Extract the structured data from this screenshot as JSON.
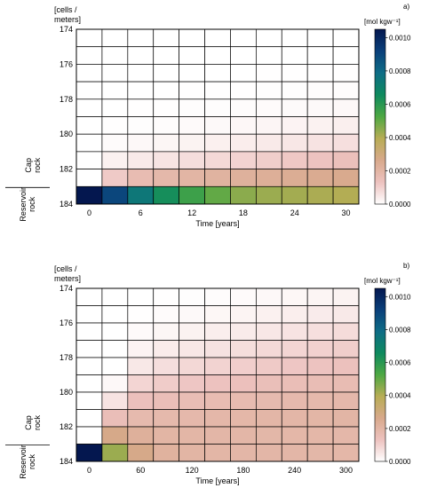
{
  "chart_data": [
    {
      "type": "heatmap",
      "panel_label": "a)",
      "units_label": "[mol kgw⁻¹]",
      "ylabel": "[cells / meters]",
      "ylabel_lines": [
        "[cells /",
        "meters]"
      ],
      "xlabel": "Time [years]",
      "x_tick_labels": [
        "0",
        "6",
        "12",
        "18",
        "24",
        "30"
      ],
      "y_tick_labels": [
        "174",
        "176",
        "178",
        "180",
        "182",
        "184"
      ],
      "x_range": [
        0,
        30
      ],
      "y_range": [
        174,
        184
      ],
      "colorbar_range": [
        0,
        0.00105
      ],
      "colorbar_tick_labels": [
        "0.0010",
        "0.0008",
        "0.0006",
        "0.0004",
        "0.0002",
        "0.0000"
      ],
      "colorbar_colors": [
        "#ffffff",
        "#edc2bf",
        "#d8a98c",
        "#b8ad55",
        "#4ea843",
        "#0e8a5e",
        "#0e6d86",
        "#0a3f7a",
        "#04174f"
      ],
      "zone_labels": {
        "cap": [
          "Cap",
          "rock"
        ],
        "reservoir": [
          "Reservoir",
          "rock"
        ]
      },
      "columns": 11,
      "rows": 10,
      "values": [
        [
          0.0,
          0.0,
          0.0,
          0.0,
          0.0,
          0.0,
          0.0,
          0.0,
          0.0,
          0.0,
          0.0
        ],
        [
          0.0,
          0.0,
          0.0,
          0.0,
          0.0,
          0.0,
          0.0,
          0.0,
          1e-06,
          1e-06,
          1e-06
        ],
        [
          0.0,
          0.0,
          0.0,
          0.0,
          1e-06,
          1e-06,
          1e-06,
          2e-06,
          2e-06,
          3e-06,
          3e-06
        ],
        [
          0.0,
          0.0,
          1e-06,
          1e-06,
          2e-06,
          2e-06,
          3e-06,
          4e-06,
          5e-06,
          6e-06,
          7e-06
        ],
        [
          0.0,
          1e-06,
          2e-06,
          3e-06,
          4e-06,
          5e-06,
          7e-06,
          9e-06,
          1.1e-05,
          1.3e-05,
          1.5e-05
        ],
        [
          0.0,
          3e-06,
          5e-06,
          7e-06,
          1e-05,
          1.3e-05,
          1.7e-05,
          2.1e-05,
          2.5e-05,
          2.9e-05,
          3.4e-05
        ],
        [
          0.0,
          9e-06,
          1.4e-05,
          2e-05,
          2.6e-05,
          3.2e-05,
          3.8e-05,
          4.5e-05,
          5.2e-05,
          6e-05,
          6.8e-05
        ],
        [
          0.0,
          3e-05,
          4.5e-05,
          5.8e-05,
          7e-05,
          8.2e-05,
          9.4e-05,
          0.000106,
          0.000118,
          0.00013,
          0.000142
        ],
        [
          0.0,
          0.000115,
          0.000165,
          0.000185,
          0.0002,
          0.000212,
          0.000222,
          0.000232,
          0.000242,
          0.00025,
          0.000258
        ],
        [
          0.00105,
          0.0009,
          0.00074,
          0.00064,
          0.00056,
          0.0005,
          0.00045,
          0.00043,
          0.00042,
          0.00041,
          0.0004
        ]
      ]
    },
    {
      "type": "heatmap",
      "panel_label": "b)",
      "units_label": "[mol kgw⁻¹]",
      "ylabel": "[cells / meters]",
      "ylabel_lines": [
        "[cells /",
        "meters]"
      ],
      "xlabel": "Time [years]",
      "x_tick_labels": [
        "0",
        "60",
        "120",
        "180",
        "240",
        "300"
      ],
      "y_tick_labels": [
        "174",
        "176",
        "178",
        "180",
        "182",
        "184"
      ],
      "x_range": [
        0,
        300
      ],
      "y_range": [
        174,
        184
      ],
      "colorbar_range": [
        0,
        0.00105
      ],
      "colorbar_tick_labels": [
        "0.0010",
        "0.0008",
        "0.0006",
        "0.0004",
        "0.0002",
        "0.0000"
      ],
      "colorbar_colors": [
        "#ffffff",
        "#edc2bf",
        "#d8a98c",
        "#b8ad55",
        "#4ea843",
        "#0e8a5e",
        "#0e6d86",
        "#0a3f7a",
        "#04174f"
      ],
      "zone_labels": {
        "cap": [
          "Cap",
          "rock"
        ],
        "reservoir": [
          "Reservoir",
          "rock"
        ]
      },
      "columns": 11,
      "rows": 10,
      "values": [
        [
          0.0,
          0.0,
          0.0,
          2e-06,
          4e-06,
          7e-06,
          1e-05,
          1.4e-05,
          1.8e-05,
          2.2e-05,
          2.6e-05
        ],
        [
          0.0,
          0.0,
          3e-06,
          8e-06,
          1.3e-05,
          1.8e-05,
          2.4e-05,
          3e-05,
          3.6e-05,
          4.2e-05,
          4.8e-05
        ],
        [
          0.0,
          0.0,
          1e-05,
          2e-05,
          2.8e-05,
          3.6e-05,
          4.4e-05,
          5.2e-05,
          6e-05,
          6.8e-05,
          7.5e-05
        ],
        [
          0.0,
          0.0,
          2.5e-05,
          4e-05,
          5.2e-05,
          6.2e-05,
          7.2e-05,
          8.2e-05,
          9e-05,
          9.8e-05,
          0.000106
        ],
        [
          0.0,
          0.0,
          5e-05,
          7e-05,
          8.4e-05,
          9.5e-05,
          0.000105,
          0.000114,
          0.000122,
          0.000129,
          0.000136
        ],
        [
          0.0,
          1.5e-05,
          9e-05,
          0.00011,
          0.000122,
          0.000132,
          0.00014,
          0.000147,
          0.000153,
          0.000158,
          0.000163
        ],
        [
          0.0,
          6e-05,
          0.00014,
          0.00015,
          0.000158,
          0.000164,
          0.000169,
          0.000173,
          0.000177,
          0.00018,
          0.000183
        ],
        [
          0.0,
          0.00015,
          0.000175,
          0.00018,
          0.000184,
          0.000187,
          0.00019,
          0.000192,
          0.000194,
          0.000196,
          0.000198
        ],
        [
          0.0,
          0.00027,
          0.000225,
          0.0002,
          0.000195,
          0.000193,
          0.000192,
          0.000191,
          0.00019,
          0.00019,
          0.000189
        ],
        [
          0.00105,
          0.00043,
          0.00027,
          0.000215,
          0.0002,
          0.000196,
          0.000194,
          0.000193,
          0.000192,
          0.000191,
          0.00019
        ]
      ]
    }
  ]
}
